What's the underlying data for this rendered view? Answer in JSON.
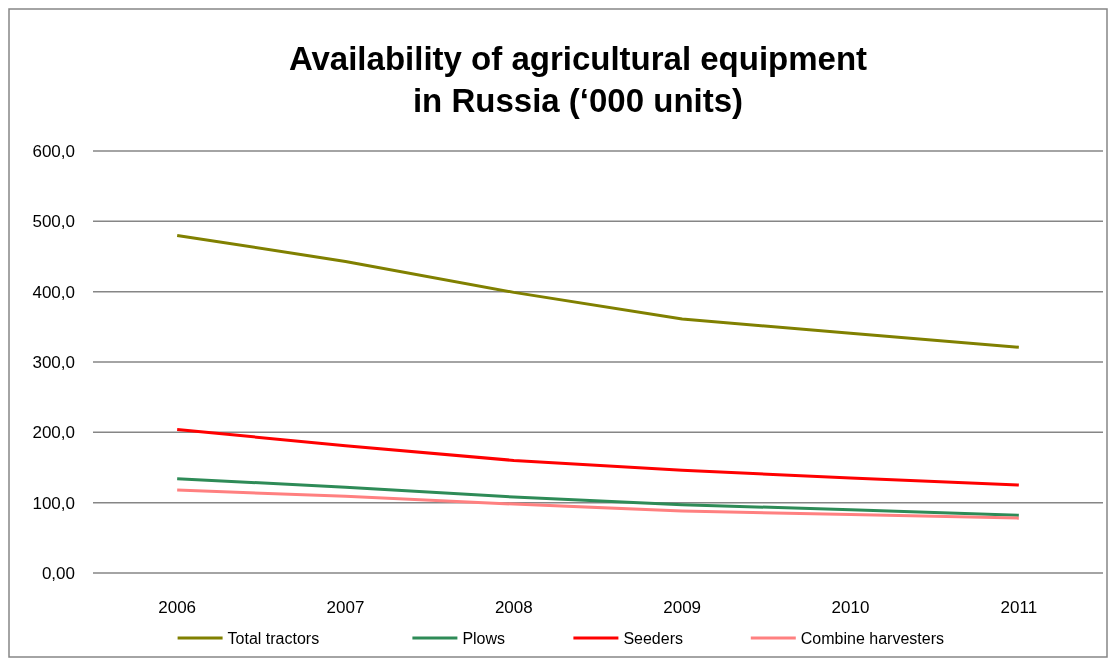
{
  "chart_data": {
    "type": "line",
    "title": "Availability of agricultural equipment\nin Russia (‘000 units)",
    "categories": [
      "2006",
      "2007",
      "2008",
      "2009",
      "2010",
      "2011"
    ],
    "series": [
      {
        "name": "Total tractors",
        "color": "#808000",
        "values": [
          480,
          443,
          399,
          361,
          341,
          321
        ]
      },
      {
        "name": "Plows",
        "color": "#2e8b57",
        "values": [
          134,
          122,
          108,
          97,
          90,
          82
        ]
      },
      {
        "name": "Seeders",
        "color": "#ff0000",
        "values": [
          204,
          181,
          160,
          146,
          135,
          125
        ]
      },
      {
        "name": "Combine harvesters",
        "color": "#ff8080",
        "values": [
          118,
          109,
          98,
          88,
          83,
          78
        ]
      }
    ],
    "ylim": [
      0,
      600
    ],
    "yticks": [
      {
        "value": 0,
        "label": "0,00"
      },
      {
        "value": 100,
        "label": "100,0"
      },
      {
        "value": 200,
        "label": "200,0"
      },
      {
        "value": 300,
        "label": "300,0"
      },
      {
        "value": 400,
        "label": "400,0"
      },
      {
        "value": 500,
        "label": "500,0"
      },
      {
        "value": 600,
        "label": "600,0"
      }
    ],
    "grid": "y",
    "legend": "bottom",
    "marker": "none",
    "line_style": "solid"
  }
}
